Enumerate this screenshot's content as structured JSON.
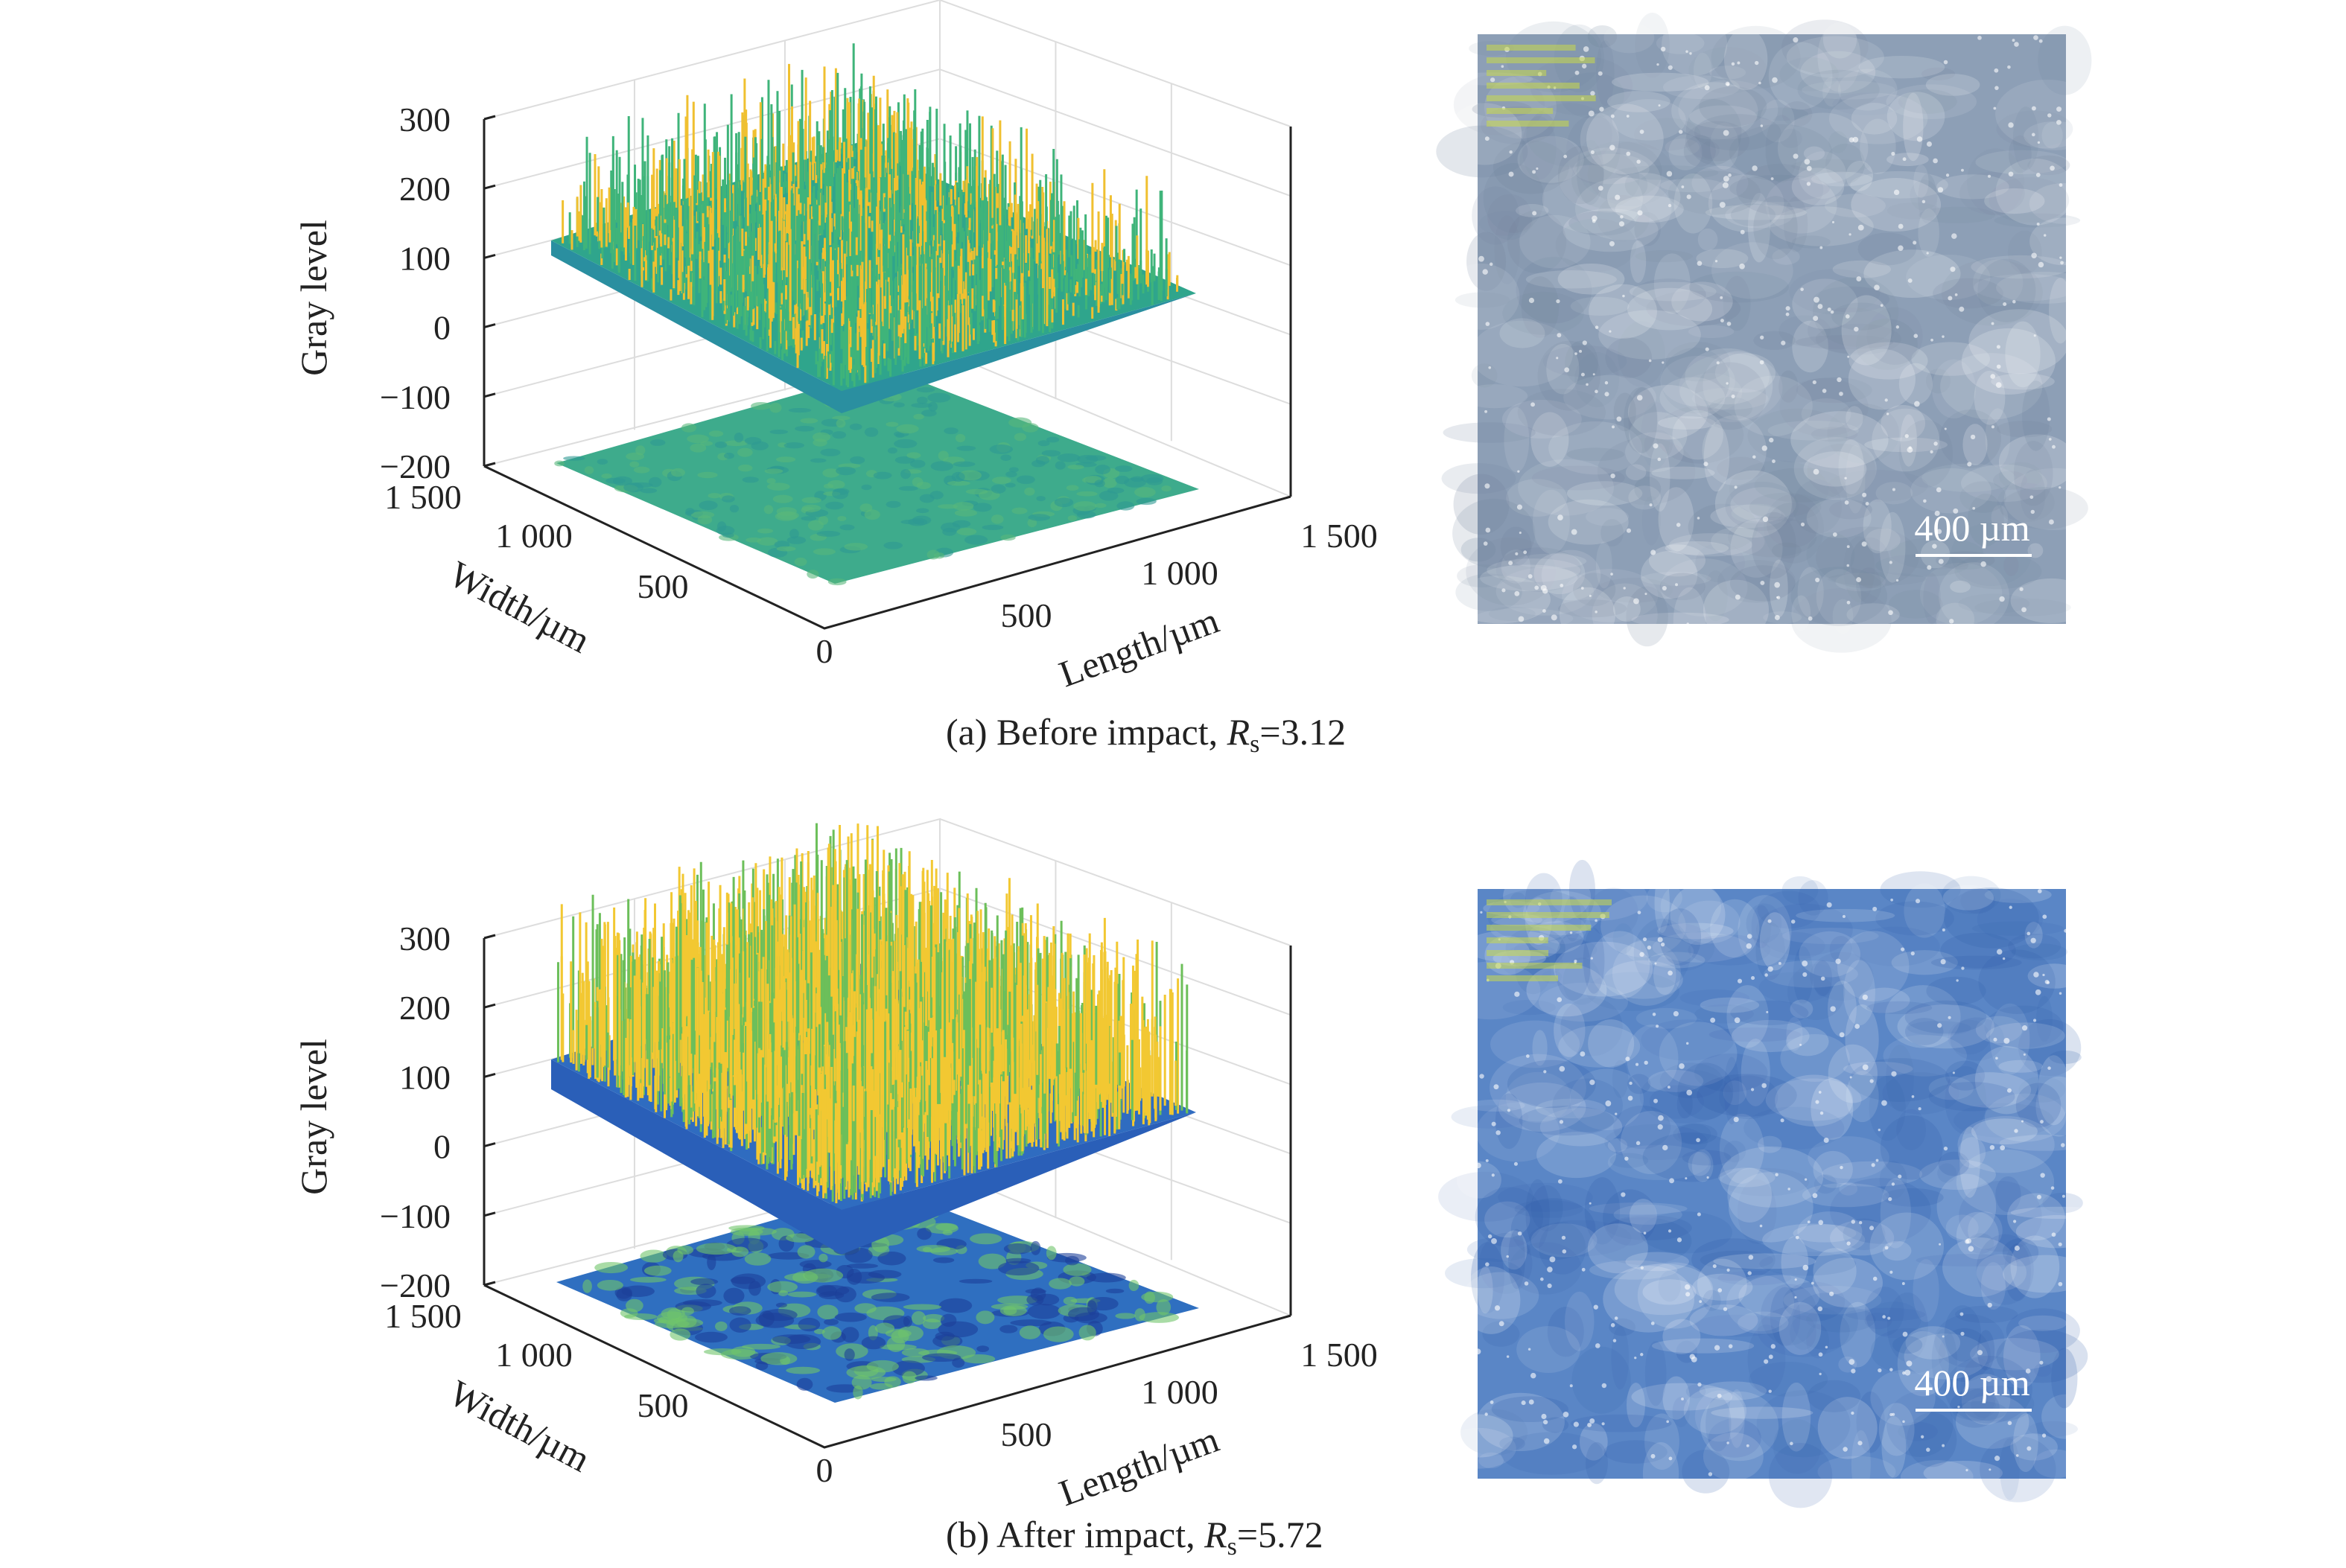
{
  "chart_data": [
    {
      "type": "surface",
      "zlabel": "Gray level",
      "xlabel": "Length/µm",
      "ylabel": "Width/µm",
      "zticks": [
        "300",
        "200",
        "100",
        "0",
        "−100",
        "−200"
      ],
      "zlim": [
        -200,
        300
      ],
      "xticks": [
        "500",
        "1 000",
        "1 500"
      ],
      "yticks": [
        "0",
        "500",
        "1 000",
        "1 500"
      ],
      "caption": {
        "prefix": "(a) Before impact, ",
        "symbol": "R",
        "sub": "s",
        "value": "=3.12"
      },
      "scale_bar": "400 µm",
      "surface_colors": {
        "base": "#2fa58c",
        "peak": "#f0c030",
        "floor": "#3eab8c"
      },
      "photo_color": "#8d9fb6"
    },
    {
      "type": "surface",
      "zlabel": "Gray level",
      "xlabel": "Length/µm",
      "ylabel": "Width/µm",
      "zticks": [
        "300",
        "200",
        "100",
        "0",
        "−100",
        "−200"
      ],
      "zlim": [
        -200,
        300
      ],
      "xticks": [
        "500",
        "1 000",
        "1 500"
      ],
      "yticks": [
        "0",
        "500",
        "1 000",
        "1 500"
      ],
      "caption": {
        "prefix": "(b) After impact, ",
        "symbol": "R",
        "sub": "s",
        "value": "=5.72"
      },
      "scale_bar": "400 µm",
      "surface_colors": {
        "base": "#2f6cc0",
        "peak": "#f2c832",
        "floor": "#2f6fc0"
      },
      "photo_color": "#5a86c6"
    }
  ]
}
